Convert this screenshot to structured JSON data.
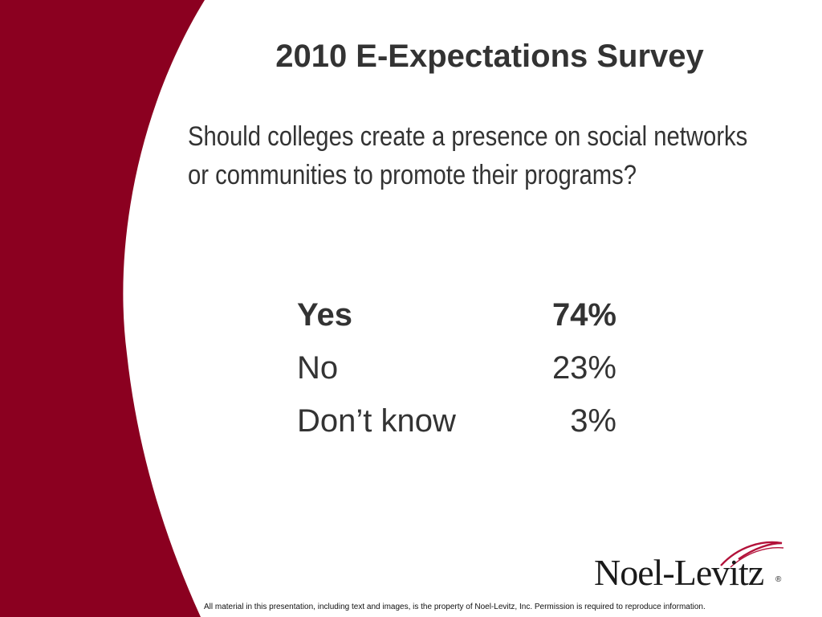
{
  "slide": {
    "title": "2010 E-Expectations Survey",
    "question": {
      "line1": "Should colleges create a presence on social networks",
      "line2": "or communities to promote their programs?"
    },
    "results": [
      {
        "label": "Yes",
        "value": "74%",
        "bold": true
      },
      {
        "label": "No",
        "value": "23%",
        "bold": false
      },
      {
        "label": "Don’t know",
        "value": "3%",
        "bold": false
      }
    ],
    "logo": {
      "text": "Noel-Levitz"
    },
    "footer": "All material in this presentation, including text and images, is the property of Noel-Levitz, Inc. Permission is required to reproduce information."
  },
  "colors": {
    "accent": "#8B0020",
    "text": "#333333",
    "background": "#ffffff"
  }
}
